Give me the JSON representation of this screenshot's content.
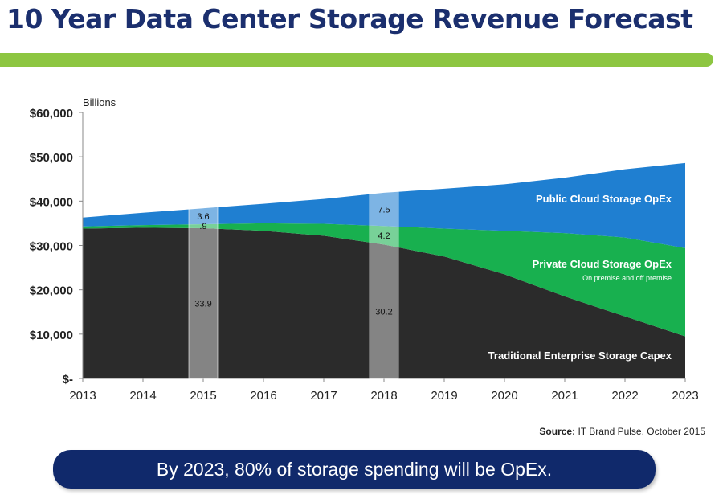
{
  "header": {
    "title": "10 Year Data Center Storage Revenue Forecast"
  },
  "colors": {
    "title": "#1b2f6e",
    "accent_bar": "#8dc641",
    "banner": "#10296b"
  },
  "chart_data": {
    "type": "area",
    "stacked": true,
    "ylabel": "Billions",
    "x": [
      2013,
      2014,
      2015,
      2016,
      2017,
      2018,
      2019,
      2020,
      2021,
      2022,
      2023
    ],
    "ylim": [
      0,
      60000
    ],
    "y_ticks": [
      "$-",
      "$10,000",
      "$20,000",
      "$30,000",
      "$40,000",
      "$50,000",
      "$60,000"
    ],
    "grid": false,
    "series": [
      {
        "name": "Traditional Enterprise Storage Capex",
        "color": "#2b2b2b",
        "values": [
          33800,
          34000,
          33900,
          33300,
          32200,
          30200,
          27500,
          23500,
          18500,
          14000,
          9500
        ]
      },
      {
        "name": "Private Cloud Storage OpEx",
        "note": "On premise and off premise",
        "color": "#18b04f",
        "values": [
          500,
          600,
          900,
          1700,
          2700,
          4200,
          6300,
          9800,
          14300,
          17800,
          19900
        ]
      },
      {
        "name": "Public Cloud Storage OpEx",
        "color": "#1f7fd1",
        "values": [
          2000,
          2800,
          3600,
          4400,
          5600,
          7500,
          9000,
          10500,
          12500,
          15400,
          19200
        ]
      }
    ],
    "callouts": [
      {
        "year": 2015,
        "labels": [
          "3.6",
          ".9",
          "33.9"
        ]
      },
      {
        "year": 2018,
        "labels": [
          "7.5",
          "4.2",
          "30.2"
        ]
      }
    ]
  },
  "footer": {
    "source_label": "Source:",
    "source_text": "IT Brand Pulse, October 2015",
    "banner": "By 2023, 80% of storage spending will be OpEx."
  }
}
